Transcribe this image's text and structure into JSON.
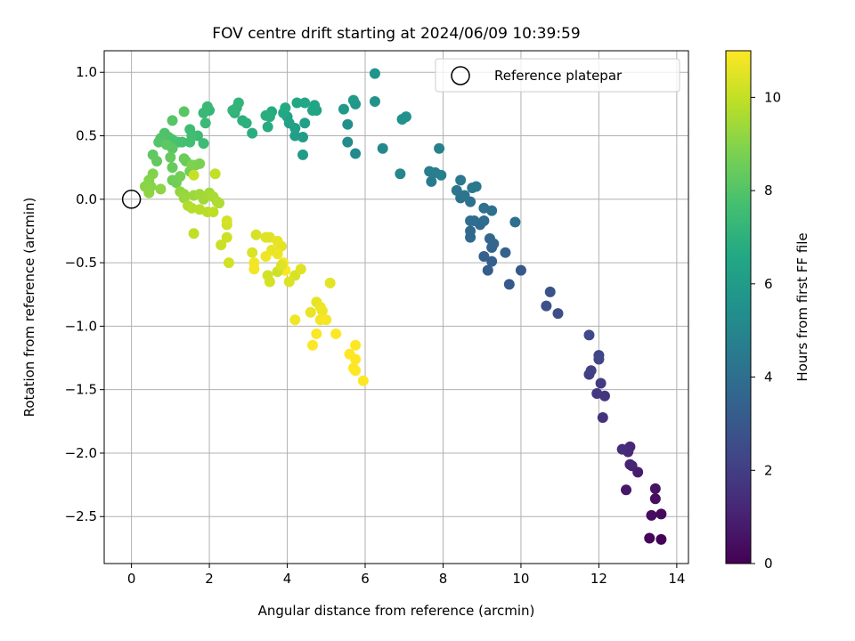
{
  "chart_data": {
    "type": "scatter",
    "title": "FOV centre drift starting at 2024/06/09 10:39:59",
    "xlabel": "Angular distance from reference (arcmin)",
    "ylabel": "Rotation from reference (arcmin)",
    "xlim": [
      -0.7,
      14.3
    ],
    "ylim": [
      -2.87,
      1.17
    ],
    "x_ticks": [
      0,
      2,
      4,
      6,
      8,
      10,
      12,
      14
    ],
    "x_tick_labels": [
      "0",
      "2",
      "4",
      "6",
      "8",
      "10",
      "12",
      "14"
    ],
    "y_ticks": [
      -2.5,
      -2.0,
      -1.5,
      -1.0,
      -0.5,
      0.0,
      0.5,
      1.0
    ],
    "y_tick_labels": [
      "−2.5",
      "−2.0",
      "−1.5",
      "−1.0",
      "−0.5",
      "0.0",
      "0.5",
      "1.0"
    ],
    "grid": true,
    "legend": {
      "position": "top-right",
      "entries": [
        "Reference platepar"
      ]
    },
    "colormap": "viridis",
    "colorbar": {
      "label": "Hours from first FF file",
      "min": 0,
      "max": 11,
      "ticks": [
        0,
        2,
        4,
        6,
        8,
        10
      ],
      "tick_labels": [
        "0",
        "2",
        "4",
        "6",
        "8",
        "10"
      ]
    },
    "reference_point": {
      "label": "Reference platepar",
      "x": 0,
      "y": 0
    },
    "points": [
      [
        13.6,
        -2.68,
        0.05
      ],
      [
        13.3,
        -2.67,
        0.15
      ],
      [
        13.6,
        -2.48,
        0.25
      ],
      [
        13.35,
        -2.49,
        0.35
      ],
      [
        13.45,
        -2.36,
        0.45
      ],
      [
        13.45,
        -2.28,
        0.55
      ],
      [
        12.7,
        -2.29,
        0.7
      ],
      [
        13.0,
        -2.15,
        0.85
      ],
      [
        12.85,
        -2.1,
        1.0
      ],
      [
        12.8,
        -2.09,
        1.1
      ],
      [
        12.8,
        -1.95,
        1.2
      ],
      [
        12.75,
        -1.99,
        1.3
      ],
      [
        12.6,
        -1.97,
        1.4
      ],
      [
        12.1,
        -1.72,
        1.6
      ],
      [
        12.15,
        -1.55,
        1.7
      ],
      [
        11.95,
        -1.53,
        1.8
      ],
      [
        12.05,
        -1.45,
        1.9
      ],
      [
        11.75,
        -1.38,
        2.0
      ],
      [
        11.8,
        -1.35,
        2.1
      ],
      [
        12.0,
        -1.23,
        2.2
      ],
      [
        12.0,
        -1.26,
        2.3
      ],
      [
        11.75,
        -1.07,
        2.4
      ],
      [
        10.95,
        -0.9,
        2.6
      ],
      [
        10.65,
        -0.84,
        2.7
      ],
      [
        10.75,
        -0.73,
        2.8
      ],
      [
        10.0,
        -0.56,
        3.0
      ],
      [
        9.7,
        -0.67,
        3.1
      ],
      [
        9.15,
        -0.56,
        3.2
      ],
      [
        9.25,
        -0.49,
        3.3
      ],
      [
        9.05,
        -0.45,
        3.4
      ],
      [
        9.6,
        -0.42,
        3.45
      ],
      [
        9.25,
        -0.38,
        3.5
      ],
      [
        9.3,
        -0.35,
        3.55
      ],
      [
        9.2,
        -0.31,
        3.6
      ],
      [
        8.7,
        -0.3,
        3.7
      ],
      [
        8.7,
        -0.25,
        3.75
      ],
      [
        8.95,
        -0.2,
        3.8
      ],
      [
        9.05,
        -0.17,
        3.85
      ],
      [
        8.8,
        -0.17,
        3.9
      ],
      [
        8.7,
        -0.17,
        3.95
      ],
      [
        9.85,
        -0.18,
        4.0
      ],
      [
        9.05,
        -0.07,
        4.05
      ],
      [
        9.25,
        -0.09,
        4.1
      ],
      [
        8.7,
        -0.02,
        4.15
      ],
      [
        8.45,
        0.01,
        4.2
      ],
      [
        8.55,
        0.03,
        4.25
      ],
      [
        8.35,
        0.07,
        4.3
      ],
      [
        8.75,
        0.09,
        4.35
      ],
      [
        8.85,
        0.1,
        4.4
      ],
      [
        8.45,
        0.15,
        4.45
      ],
      [
        7.7,
        0.14,
        4.5
      ],
      [
        7.65,
        0.22,
        4.6
      ],
      [
        7.8,
        0.21,
        4.65
      ],
      [
        7.95,
        0.19,
        4.7
      ],
      [
        7.9,
        0.4,
        4.8
      ],
      [
        6.9,
        0.2,
        5.0
      ],
      [
        6.45,
        0.4,
        5.1
      ],
      [
        5.75,
        0.36,
        5.2
      ],
      [
        5.55,
        0.45,
        5.3
      ],
      [
        5.55,
        0.59,
        5.4
      ],
      [
        6.95,
        0.63,
        5.5
      ],
      [
        7.05,
        0.65,
        5.55
      ],
      [
        6.25,
        0.77,
        5.6
      ],
      [
        6.25,
        0.99,
        5.7
      ],
      [
        5.75,
        0.75,
        5.8
      ],
      [
        5.45,
        0.71,
        5.9
      ],
      [
        5.7,
        0.78,
        5.95
      ],
      [
        4.4,
        0.35,
        6.0
      ],
      [
        4.4,
        0.49,
        6.05
      ],
      [
        4.2,
        0.5,
        6.1
      ],
      [
        4.2,
        0.56,
        6.15
      ],
      [
        4.45,
        0.6,
        6.2
      ],
      [
        4.05,
        0.6,
        6.25
      ],
      [
        4.0,
        0.65,
        6.3
      ],
      [
        4.75,
        0.7,
        6.35
      ],
      [
        4.65,
        0.7,
        6.4
      ],
      [
        4.7,
        0.74,
        6.45
      ],
      [
        4.45,
        0.76,
        6.5
      ],
      [
        4.25,
        0.76,
        6.55
      ],
      [
        3.9,
        0.68,
        6.6
      ],
      [
        3.95,
        0.72,
        6.65
      ],
      [
        3.6,
        0.69,
        6.7
      ],
      [
        3.5,
        0.57,
        6.75
      ],
      [
        3.55,
        0.65,
        6.8
      ],
      [
        3.45,
        0.66,
        6.85
      ],
      [
        3.1,
        0.52,
        6.9
      ],
      [
        2.95,
        0.6,
        6.95
      ],
      [
        2.85,
        0.62,
        7.0
      ],
      [
        2.65,
        0.68,
        7.05
      ],
      [
        2.7,
        0.72,
        7.1
      ],
      [
        2.75,
        0.76,
        7.15
      ],
      [
        2.6,
        0.7,
        7.2
      ],
      [
        2.0,
        0.7,
        7.25
      ],
      [
        1.85,
        0.68,
        7.3
      ],
      [
        1.95,
        0.73,
        7.35
      ],
      [
        1.9,
        0.6,
        7.4
      ],
      [
        1.7,
        0.5,
        7.45
      ],
      [
        1.85,
        0.44,
        7.5
      ],
      [
        1.5,
        0.55,
        7.55
      ],
      [
        1.55,
        0.5,
        7.6
      ],
      [
        1.5,
        0.45,
        7.65
      ],
      [
        1.3,
        0.45,
        7.7
      ],
      [
        1.2,
        0.45,
        7.75
      ],
      [
        1.05,
        0.47,
        7.8
      ],
      [
        0.95,
        0.49,
        7.85
      ],
      [
        0.85,
        0.52,
        7.9
      ],
      [
        0.75,
        0.48,
        7.95
      ],
      [
        0.7,
        0.45,
        8.0
      ],
      [
        1.05,
        0.62,
        8.05
      ],
      [
        1.35,
        0.69,
        8.1
      ],
      [
        1.05,
        0.4,
        8.15
      ],
      [
        0.9,
        0.43,
        8.2
      ],
      [
        0.55,
        0.35,
        8.25
      ],
      [
        0.65,
        0.3,
        8.3
      ],
      [
        1.0,
        0.33,
        8.35
      ],
      [
        1.05,
        0.25,
        8.4
      ],
      [
        1.35,
        0.32,
        8.45
      ],
      [
        1.4,
        0.3,
        8.5
      ],
      [
        1.05,
        0.15,
        8.55
      ],
      [
        1.15,
        0.13,
        8.6
      ],
      [
        1.25,
        0.18,
        8.65
      ],
      [
        1.5,
        0.22,
        8.7
      ],
      [
        1.65,
        0.27,
        8.75
      ],
      [
        1.75,
        0.28,
        8.8
      ],
      [
        1.55,
        0.27,
        8.85
      ],
      [
        0.55,
        0.2,
        8.9
      ],
      [
        0.45,
        0.15,
        8.95
      ],
      [
        0.5,
        0.1,
        9.0
      ],
      [
        0.35,
        0.1,
        9.05
      ],
      [
        0.75,
        0.08,
        9.1
      ],
      [
        0.45,
        0.05,
        9.15
      ],
      [
        1.25,
        0.06,
        9.2
      ],
      [
        1.35,
        0.04,
        9.25
      ],
      [
        1.35,
        0.01,
        9.3
      ],
      [
        1.6,
        0.03,
        9.35
      ],
      [
        1.75,
        0.04,
        9.4
      ],
      [
        1.85,
        0.0,
        9.45
      ],
      [
        2.0,
        0.05,
        9.5
      ],
      [
        2.1,
        0.02,
        9.55
      ],
      [
        2.2,
        -0.02,
        9.6
      ],
      [
        2.25,
        -0.03,
        9.65
      ],
      [
        1.45,
        -0.05,
        9.7
      ],
      [
        1.55,
        -0.07,
        9.75
      ],
      [
        1.75,
        -0.08,
        9.8
      ],
      [
        1.95,
        -0.1,
        9.85
      ],
      [
        2.1,
        -0.1,
        9.9
      ],
      [
        1.6,
        -0.27,
        9.95
      ],
      [
        2.15,
        0.2,
        10.0
      ],
      [
        1.6,
        0.19,
        10.05
      ],
      [
        2.3,
        -0.36,
        10.1
      ],
      [
        2.45,
        -0.3,
        10.15
      ],
      [
        2.45,
        -0.2,
        10.2
      ],
      [
        2.5,
        -0.5,
        10.25
      ],
      [
        2.45,
        -0.17,
        10.3
      ],
      [
        3.2,
        -0.28,
        10.35
      ],
      [
        3.1,
        -0.42,
        10.4
      ],
      [
        3.45,
        -0.3,
        10.45
      ],
      [
        3.55,
        -0.3,
        10.5
      ],
      [
        3.85,
        -0.37,
        10.55
      ],
      [
        3.75,
        -0.33,
        10.6
      ],
      [
        3.6,
        -0.4,
        10.65
      ],
      [
        3.75,
        -0.43,
        10.7
      ],
      [
        3.45,
        -0.45,
        10.75
      ],
      [
        3.15,
        -0.5,
        10.8
      ],
      [
        3.15,
        -0.55,
        10.85
      ],
      [
        3.9,
        -0.5,
        10.9
      ],
      [
        3.95,
        -0.56,
        10.95
      ],
      [
        3.75,
        -0.57,
        10.2
      ],
      [
        3.5,
        -0.6,
        10.25
      ],
      [
        3.55,
        -0.65,
        10.3
      ],
      [
        4.2,
        -0.6,
        10.35
      ],
      [
        4.05,
        -0.65,
        10.4
      ],
      [
        3.85,
        -0.52,
        10.45
      ],
      [
        4.35,
        -0.55,
        10.5
      ],
      [
        5.1,
        -0.66,
        10.55
      ],
      [
        4.75,
        -0.81,
        10.6
      ],
      [
        4.6,
        -0.89,
        10.65
      ],
      [
        4.85,
        -0.85,
        10.7
      ],
      [
        4.9,
        -0.88,
        10.75
      ],
      [
        4.2,
        -0.95,
        10.8
      ],
      [
        4.85,
        -0.95,
        10.85
      ],
      [
        5.0,
        -0.95,
        10.9
      ],
      [
        4.75,
        -1.06,
        10.95
      ],
      [
        4.65,
        -1.15,
        10.98
      ],
      [
        5.25,
        -1.06,
        11.0
      ],
      [
        5.75,
        -1.15,
        11.0
      ],
      [
        5.6,
        -1.22,
        11.0
      ],
      [
        5.75,
        -1.26,
        11.0
      ],
      [
        5.7,
        -1.33,
        11.0
      ],
      [
        5.75,
        -1.35,
        11.0
      ],
      [
        5.95,
        -1.43,
        11.0
      ]
    ]
  }
}
